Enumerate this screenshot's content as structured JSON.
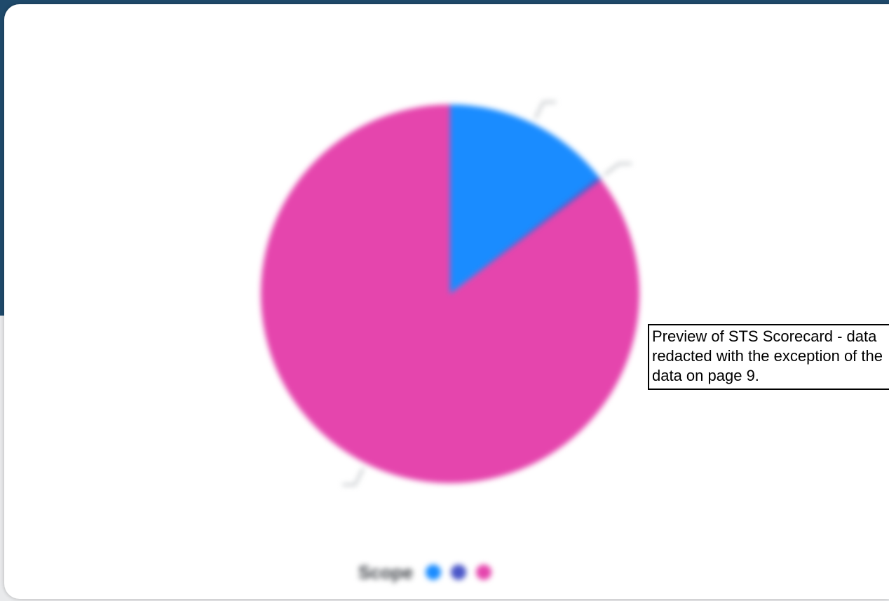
{
  "panel": {
    "title": "",
    "annotation": "Preview of STS Scorecard - data redacted with the exception of the data on page 9."
  },
  "chart_data": {
    "type": "pie",
    "title": "",
    "slices": [
      {
        "label": "",
        "value": 14.4,
        "color": "#1a8cff"
      },
      {
        "label": "",
        "value": 0.3,
        "color": "#4a56c8"
      },
      {
        "label": "",
        "value": 85.3,
        "color": "#e545ad"
      }
    ],
    "legend": {
      "title": "Scope",
      "placement": "bottom-center",
      "items": [
        {
          "label": "",
          "color": "#1a8cff"
        },
        {
          "label": "",
          "color": "#4a56c8"
        },
        {
          "label": "",
          "color": "#e545ad"
        }
      ]
    }
  }
}
